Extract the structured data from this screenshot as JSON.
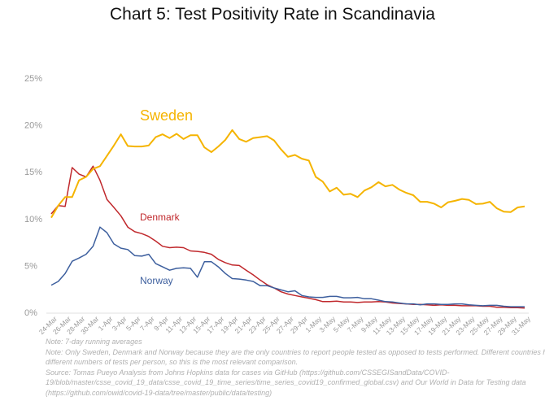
{
  "chart_data": {
    "type": "line",
    "title": "Chart 5: Test Positivity Rate in Scandinavia",
    "xlabel": "",
    "ylabel": "",
    "ylim": [
      0,
      25
    ],
    "yticks": [
      "0%",
      "5%",
      "10%",
      "15%",
      "20%",
      "25%"
    ],
    "ytick_values": [
      0,
      5,
      10,
      15,
      20,
      25
    ],
    "grid": false,
    "x_start": "24-Mar",
    "x_end": "31-May",
    "xtick_labels": [
      "24-Mar",
      "26-Mar",
      "28-Mar",
      "30-Mar",
      "1-Apr",
      "3-Apr",
      "5-Apr",
      "7-Apr",
      "9-Apr",
      "11-Apr",
      "13-Apr",
      "15-Apr",
      "17-Apr",
      "19-Apr",
      "21-Apr",
      "23-Apr",
      "25-Apr",
      "27-Apr",
      "29-Apr",
      "1-May",
      "3-May",
      "5-May",
      "7-May",
      "9-May",
      "11-May",
      "13-May",
      "15-May",
      "17-May",
      "19-May",
      "21-May",
      "23-May",
      "25-May",
      "27-May",
      "29-May",
      "31-May"
    ],
    "series": [
      {
        "name": "Sweden",
        "color": "#f5b400",
        "values": [
          10.1,
          11.4,
          12.3,
          12.3,
          14.1,
          14.45,
          15.3,
          15.6,
          16.7,
          17.8,
          19.0,
          17.75,
          17.7,
          17.7,
          17.8,
          18.7,
          19.0,
          18.6,
          19.05,
          18.5,
          18.9,
          18.9,
          17.6,
          17.1,
          17.7,
          18.4,
          19.45,
          18.5,
          18.2,
          18.6,
          18.7,
          18.8,
          18.35,
          17.4,
          16.6,
          16.8,
          16.4,
          16.2,
          14.45,
          13.95,
          12.9,
          13.3,
          12.55,
          12.65,
          12.3,
          13.0,
          13.35,
          13.9,
          13.45,
          13.6,
          13.1,
          12.75,
          12.5,
          11.8,
          11.8,
          11.6,
          11.2,
          11.75,
          11.9,
          12.1,
          12.0,
          11.55,
          11.6,
          11.8,
          11.1,
          10.75,
          10.7,
          11.2,
          11.3
        ]
      },
      {
        "name": "Denmark",
        "color": "#c0282c",
        "values": [
          10.5,
          11.4,
          11.3,
          15.45,
          14.75,
          14.45,
          15.6,
          14.1,
          12.05,
          11.2,
          10.3,
          9.1,
          8.6,
          8.4,
          8.1,
          7.6,
          7.05,
          6.9,
          6.95,
          6.9,
          6.55,
          6.5,
          6.4,
          6.2,
          5.65,
          5.3,
          5.05,
          5.0,
          4.5,
          4.0,
          3.45,
          2.95,
          2.6,
          2.2,
          1.95,
          1.8,
          1.65,
          1.5,
          1.35,
          1.15,
          1.15,
          1.2,
          1.1,
          1.1,
          1.05,
          1.1,
          1.1,
          1.15,
          1.1,
          1.0,
          0.95,
          0.9,
          0.85,
          0.85,
          0.8,
          0.75,
          0.8,
          0.75,
          0.75,
          0.7,
          0.7,
          0.7,
          0.65,
          0.65,
          0.55,
          0.55,
          0.5,
          0.5,
          0.45
        ]
      },
      {
        "name": "Norway",
        "color": "#3d5f9e",
        "values": [
          2.9,
          3.3,
          4.15,
          5.45,
          5.8,
          6.2,
          7.05,
          9.1,
          8.5,
          7.3,
          6.85,
          6.7,
          6.05,
          6.0,
          6.2,
          5.2,
          4.85,
          4.5,
          4.7,
          4.75,
          4.7,
          3.75,
          5.4,
          5.4,
          4.85,
          4.15,
          3.6,
          3.55,
          3.45,
          3.3,
          2.85,
          2.85,
          2.6,
          2.4,
          2.2,
          2.3,
          1.8,
          1.65,
          1.6,
          1.6,
          1.7,
          1.7,
          1.55,
          1.55,
          1.6,
          1.45,
          1.45,
          1.3,
          1.15,
          1.1,
          1.0,
          0.9,
          0.9,
          0.8,
          0.9,
          0.9,
          0.85,
          0.85,
          0.9,
          0.9,
          0.8,
          0.75,
          0.7,
          0.75,
          0.75,
          0.65,
          0.6,
          0.6,
          0.6
        ]
      }
    ]
  },
  "notes": [
    "Note: 7-day running averages",
    "Note: Only Sweden, Denmark and Norway because they are the only countries to report people tested as opposed to tests performed. Different countries have",
    "different numbers of tests per person, so this is the most relevant comparison.",
    "Source: Tomas Pueyo Analysis from Johns Hopkins data for cases via GitHub (https://github.com/CSSEGISandData/COVID-",
    "19/blob/master/csse_covid_19_data/csse_covid_19_time_series/time_series_covid19_confirmed_global.csv) and Our World in Data for Testing data",
    "(https://github.com/owid/covid-19-data/tree/master/public/data/testing)"
  ]
}
